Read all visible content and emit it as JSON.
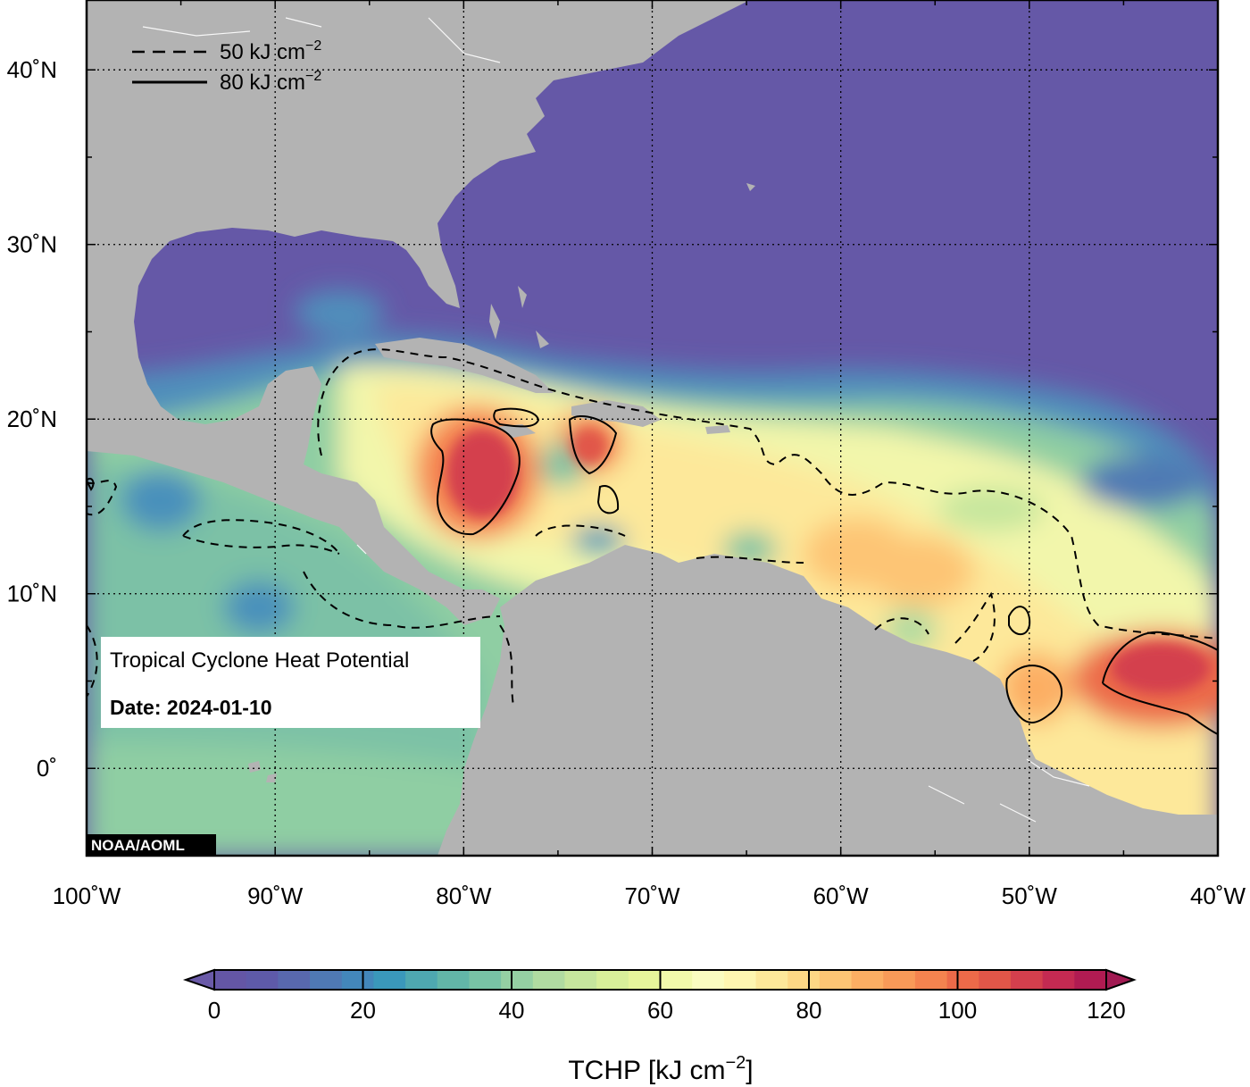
{
  "map": {
    "title": "Tropical Cyclone Heat Potential",
    "date_label": "Date: 2024-01-10",
    "credit": "NOAA/AOML",
    "lon_range": [
      -100,
      -40
    ],
    "lat_range": [
      -5,
      44
    ],
    "lon_ticks": [
      {
        "value": -100,
        "label": "100˚W"
      },
      {
        "value": -90,
        "label": "90˚W"
      },
      {
        "value": -80,
        "label": "80˚W"
      },
      {
        "value": -70,
        "label": "70˚W"
      },
      {
        "value": -60,
        "label": "60˚W"
      },
      {
        "value": -50,
        "label": "50˚W"
      },
      {
        "value": -40,
        "label": "40˚W"
      }
    ],
    "lat_ticks": [
      {
        "value": 0,
        "label": "0˚"
      },
      {
        "value": 10,
        "label": "10˚N"
      },
      {
        "value": 20,
        "label": "20˚N"
      },
      {
        "value": 30,
        "label": "30˚N"
      },
      {
        "value": 40,
        "label": "40˚N"
      }
    ],
    "contour_legend": {
      "dashed_label": "50 kJ cm",
      "solid_label": "80 kJ cm",
      "exponent": "−2"
    },
    "colors": {
      "land": "#b3b3b3",
      "cold_ocean": "#6558a7",
      "grid": "#000000"
    }
  },
  "colorbar": {
    "min": 0,
    "max": 120,
    "step": 5,
    "tick_values": [
      0,
      20,
      40,
      60,
      80,
      100,
      120
    ],
    "title": "TCHP [kJ cm",
    "title_exponent": "−2",
    "title_close": "]",
    "colors": [
      "#6456a5",
      "#5e5aa9",
      "#5868ae",
      "#4f79b4",
      "#4387bb",
      "#3a98bb",
      "#4ea8b0",
      "#62b6a8",
      "#78c3a5",
      "#95d0a3",
      "#b0dba1",
      "#c6e69d",
      "#d8ef9a",
      "#e6f59b",
      "#f2f9ab",
      "#fafcc0",
      "#fef6b0",
      "#fde89a",
      "#fdd885",
      "#fdc574",
      "#fcae63",
      "#f89a58",
      "#f4834f",
      "#ec6a49",
      "#e15648",
      "#d43f4d",
      "#c42a52",
      "#b01b52"
    ],
    "under_color": "#6a5aa8",
    "over_color": "#a11a52"
  },
  "tchp_field": {
    "hotspots": [
      {
        "name": "west-caribbean-core",
        "lon": -79.5,
        "lat": 15.5,
        "value": 112
      },
      {
        "name": "haiti-south-core",
        "lon": -73.5,
        "lat": 17.5,
        "value": 95
      },
      {
        "name": "east-atlantic-core",
        "lon": -43,
        "lat": 5,
        "value": 108
      },
      {
        "name": "amazon-plume",
        "lon": -49.5,
        "lat": 3.8,
        "value": 90
      }
    ]
  }
}
